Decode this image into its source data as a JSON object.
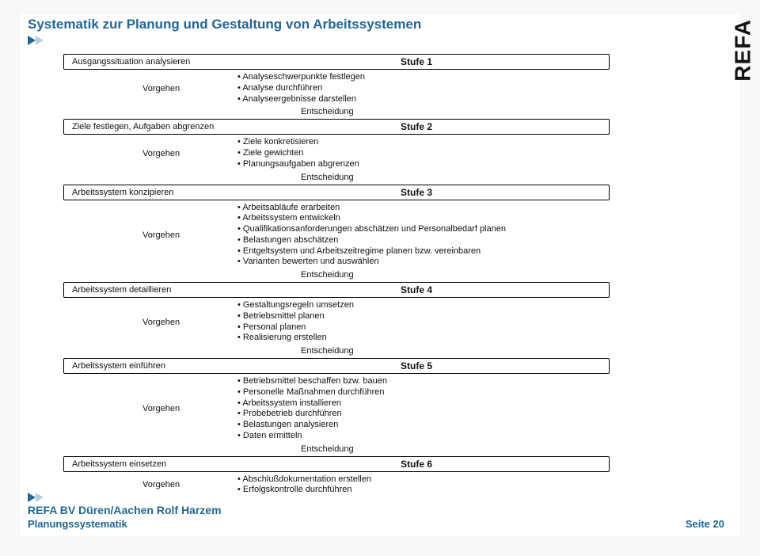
{
  "title": "Systematik zur Planung und Gestaltung von Arbeitssystemen",
  "logo": "REFA",
  "labels": {
    "vorgehen": "Vorgehen",
    "entscheidung": "Entscheidung",
    "stufe_prefix": "Stufe"
  },
  "stages": [
    {
      "num": "1",
      "title": "Ausgangssituation analysieren",
      "bullets": [
        "Analyseschwerpunkte festlegen",
        "Analyse durchführen",
        "Analyseergebnisse darstellen"
      ]
    },
    {
      "num": "2",
      "title": "Ziele festlegen, Aufgaben abgrenzen",
      "bullets": [
        "Ziele konkretisieren",
        "Ziele gewichten",
        "Planungsaufgaben abgrenzen"
      ]
    },
    {
      "num": "3",
      "title": "Arbeitssystem konzipieren",
      "bullets": [
        "Arbeitsabläufe erarbeiten",
        "Arbeitssystem entwickeln",
        "Qualifikationsanforderungen abschätzen und Personalbedarf planen",
        "Belastungen abschätzen",
        "Entgeltsystem und Arbeitszeitregime planen bzw. vereinbaren",
        "Varianten bewerten und auswählen"
      ]
    },
    {
      "num": "4",
      "title": "Arbeitssystem detaillieren",
      "bullets": [
        "Gestaltungsregeln umsetzen",
        "Betriebsmittel planen",
        "Personal planen",
        "Realisierung erstellen"
      ]
    },
    {
      "num": "5",
      "title": "Arbeitssystem einführen",
      "bullets": [
        "Betriebsmittel beschaffen bzw. bauen",
        "Personelle Maßnahmen durchführen",
        "Arbeitssystem installieren",
        "Probebetrieb durchführen",
        "Belastungen analysieren",
        "Daten ermitteln"
      ]
    },
    {
      "num": "6",
      "title": "Arbeitssystem einsetzen",
      "bullets": [
        "Abschlußdokumentation erstellen",
        "Erfolgskontrolle durchführen"
      ]
    }
  ],
  "footer": {
    "line1": "REFA BV Düren/Aachen Rolf Harzem",
    "line2": "Planungssystematik",
    "page_label": "Seite",
    "page_num": "20"
  },
  "colors": {
    "accent": "#206696",
    "accent_light": "#b9cfde",
    "border": "#000000",
    "bg": "#ffffff"
  }
}
